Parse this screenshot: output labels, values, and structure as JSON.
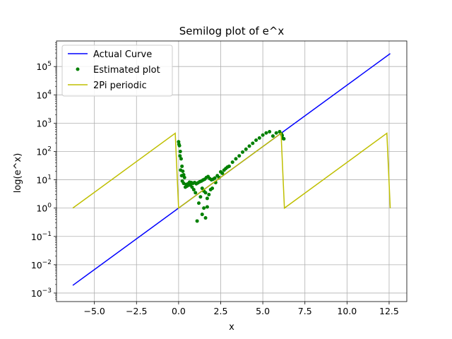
{
  "chart_data": {
    "type": "line",
    "title": "Semilog plot of e^x",
    "xlabel": "x",
    "ylabel": "log(e^x)",
    "xlim": [
      -7.25,
      13.55
    ],
    "ylim": [
      0.0005,
      800000
    ],
    "yscale": "log",
    "grid": true,
    "legend_position": "top-left",
    "x_ticks": [
      -5.0,
      -2.5,
      0.0,
      2.5,
      5.0,
      7.5,
      10.0,
      12.5
    ],
    "x_tick_labels": [
      "−5.0",
      "−2.5",
      "0.0",
      "2.5",
      "5.0",
      "7.5",
      "10.0",
      "12.5"
    ],
    "y_ticks": [
      0.001,
      0.01,
      0.1,
      1,
      10,
      100,
      1000,
      10000,
      100000
    ],
    "y_tick_labels": [
      {
        "base": "10",
        "exp": "−3"
      },
      {
        "base": "10",
        "exp": "−2"
      },
      {
        "base": "10",
        "exp": "−1"
      },
      {
        "base": "10",
        "exp": "0"
      },
      {
        "base": "10",
        "exp": "1"
      },
      {
        "base": "10",
        "exp": "2"
      },
      {
        "base": "10",
        "exp": "3"
      },
      {
        "base": "10",
        "exp": "4"
      },
      {
        "base": "10",
        "exp": "5"
      }
    ],
    "series": [
      {
        "name": "Actual Curve",
        "style": "line",
        "color": "#0000ff",
        "x": [
          -6.2832,
          12.5664
        ],
        "y": [
          0.001867,
          286751
        ]
      },
      {
        "name": "Estimated plot",
        "style": "dots",
        "color": "#008000",
        "x": [
          0.0,
          0.05,
          0.1,
          0.15,
          0.2,
          0.25,
          0.3,
          0.35,
          0.4,
          0.5,
          0.6,
          0.7,
          0.8,
          0.9,
          1.0,
          1.1,
          1.2,
          1.3,
          1.4,
          1.5,
          1.6,
          1.7,
          1.8,
          1.9,
          2.0,
          2.2,
          2.4,
          2.6,
          2.8,
          3.0,
          3.2,
          3.4,
          3.6,
          3.8,
          4.0,
          4.2,
          4.4,
          4.6,
          4.8,
          5.0,
          5.2,
          5.4,
          5.6,
          5.8,
          6.0,
          6.1,
          6.15,
          6.2,
          6.25,
          0.02,
          0.08,
          0.12,
          0.18,
          0.22,
          0.3,
          0.45,
          0.55,
          0.65,
          0.75,
          0.85,
          0.95,
          1.05,
          1.15,
          1.25,
          1.35,
          1.45,
          1.55,
          1.65,
          1.75,
          1.85,
          1.95,
          2.05,
          2.15,
          2.3,
          2.5,
          2.7,
          2.9,
          1.6,
          1.5,
          1.7,
          1.4
        ],
        "y": [
          220,
          160,
          100,
          55,
          30,
          20,
          15,
          12,
          5.5,
          6,
          6.5,
          6.5,
          5.5,
          4.5,
          3.5,
          0.35,
          1.5,
          2.5,
          5,
          4,
          3.5,
          2.2,
          3,
          4.5,
          5,
          8,
          12,
          17,
          25,
          30,
          42,
          55,
          70,
          95,
          120,
          155,
          195,
          250,
          300,
          380,
          450,
          500,
          350,
          450,
          500,
          420,
          370,
          290,
          280,
          180,
          70,
          22,
          14,
          9,
          7.5,
          6.8,
          7.2,
          8.2,
          8.0,
          7.5,
          8.0,
          7.2,
          7.8,
          8.5,
          9.0,
          9.8,
          10.5,
          12.0,
          13.0,
          11.0,
          10.0,
          10.5,
          11.5,
          14,
          19,
          22,
          28,
          0.45,
          1.0,
          1.1,
          0.6
        ],
        "marker_radius": 2.5
      },
      {
        "name": "2Pi periodic",
        "style": "line",
        "color": "#bfbf00",
        "x": [
          -6.2832,
          -0.2,
          0.0,
          6.0832,
          6.2832,
          12.3664,
          12.5664
        ],
        "y": [
          1.0,
          440,
          1.0,
          440,
          1.0,
          440,
          1.0
        ]
      }
    ]
  }
}
